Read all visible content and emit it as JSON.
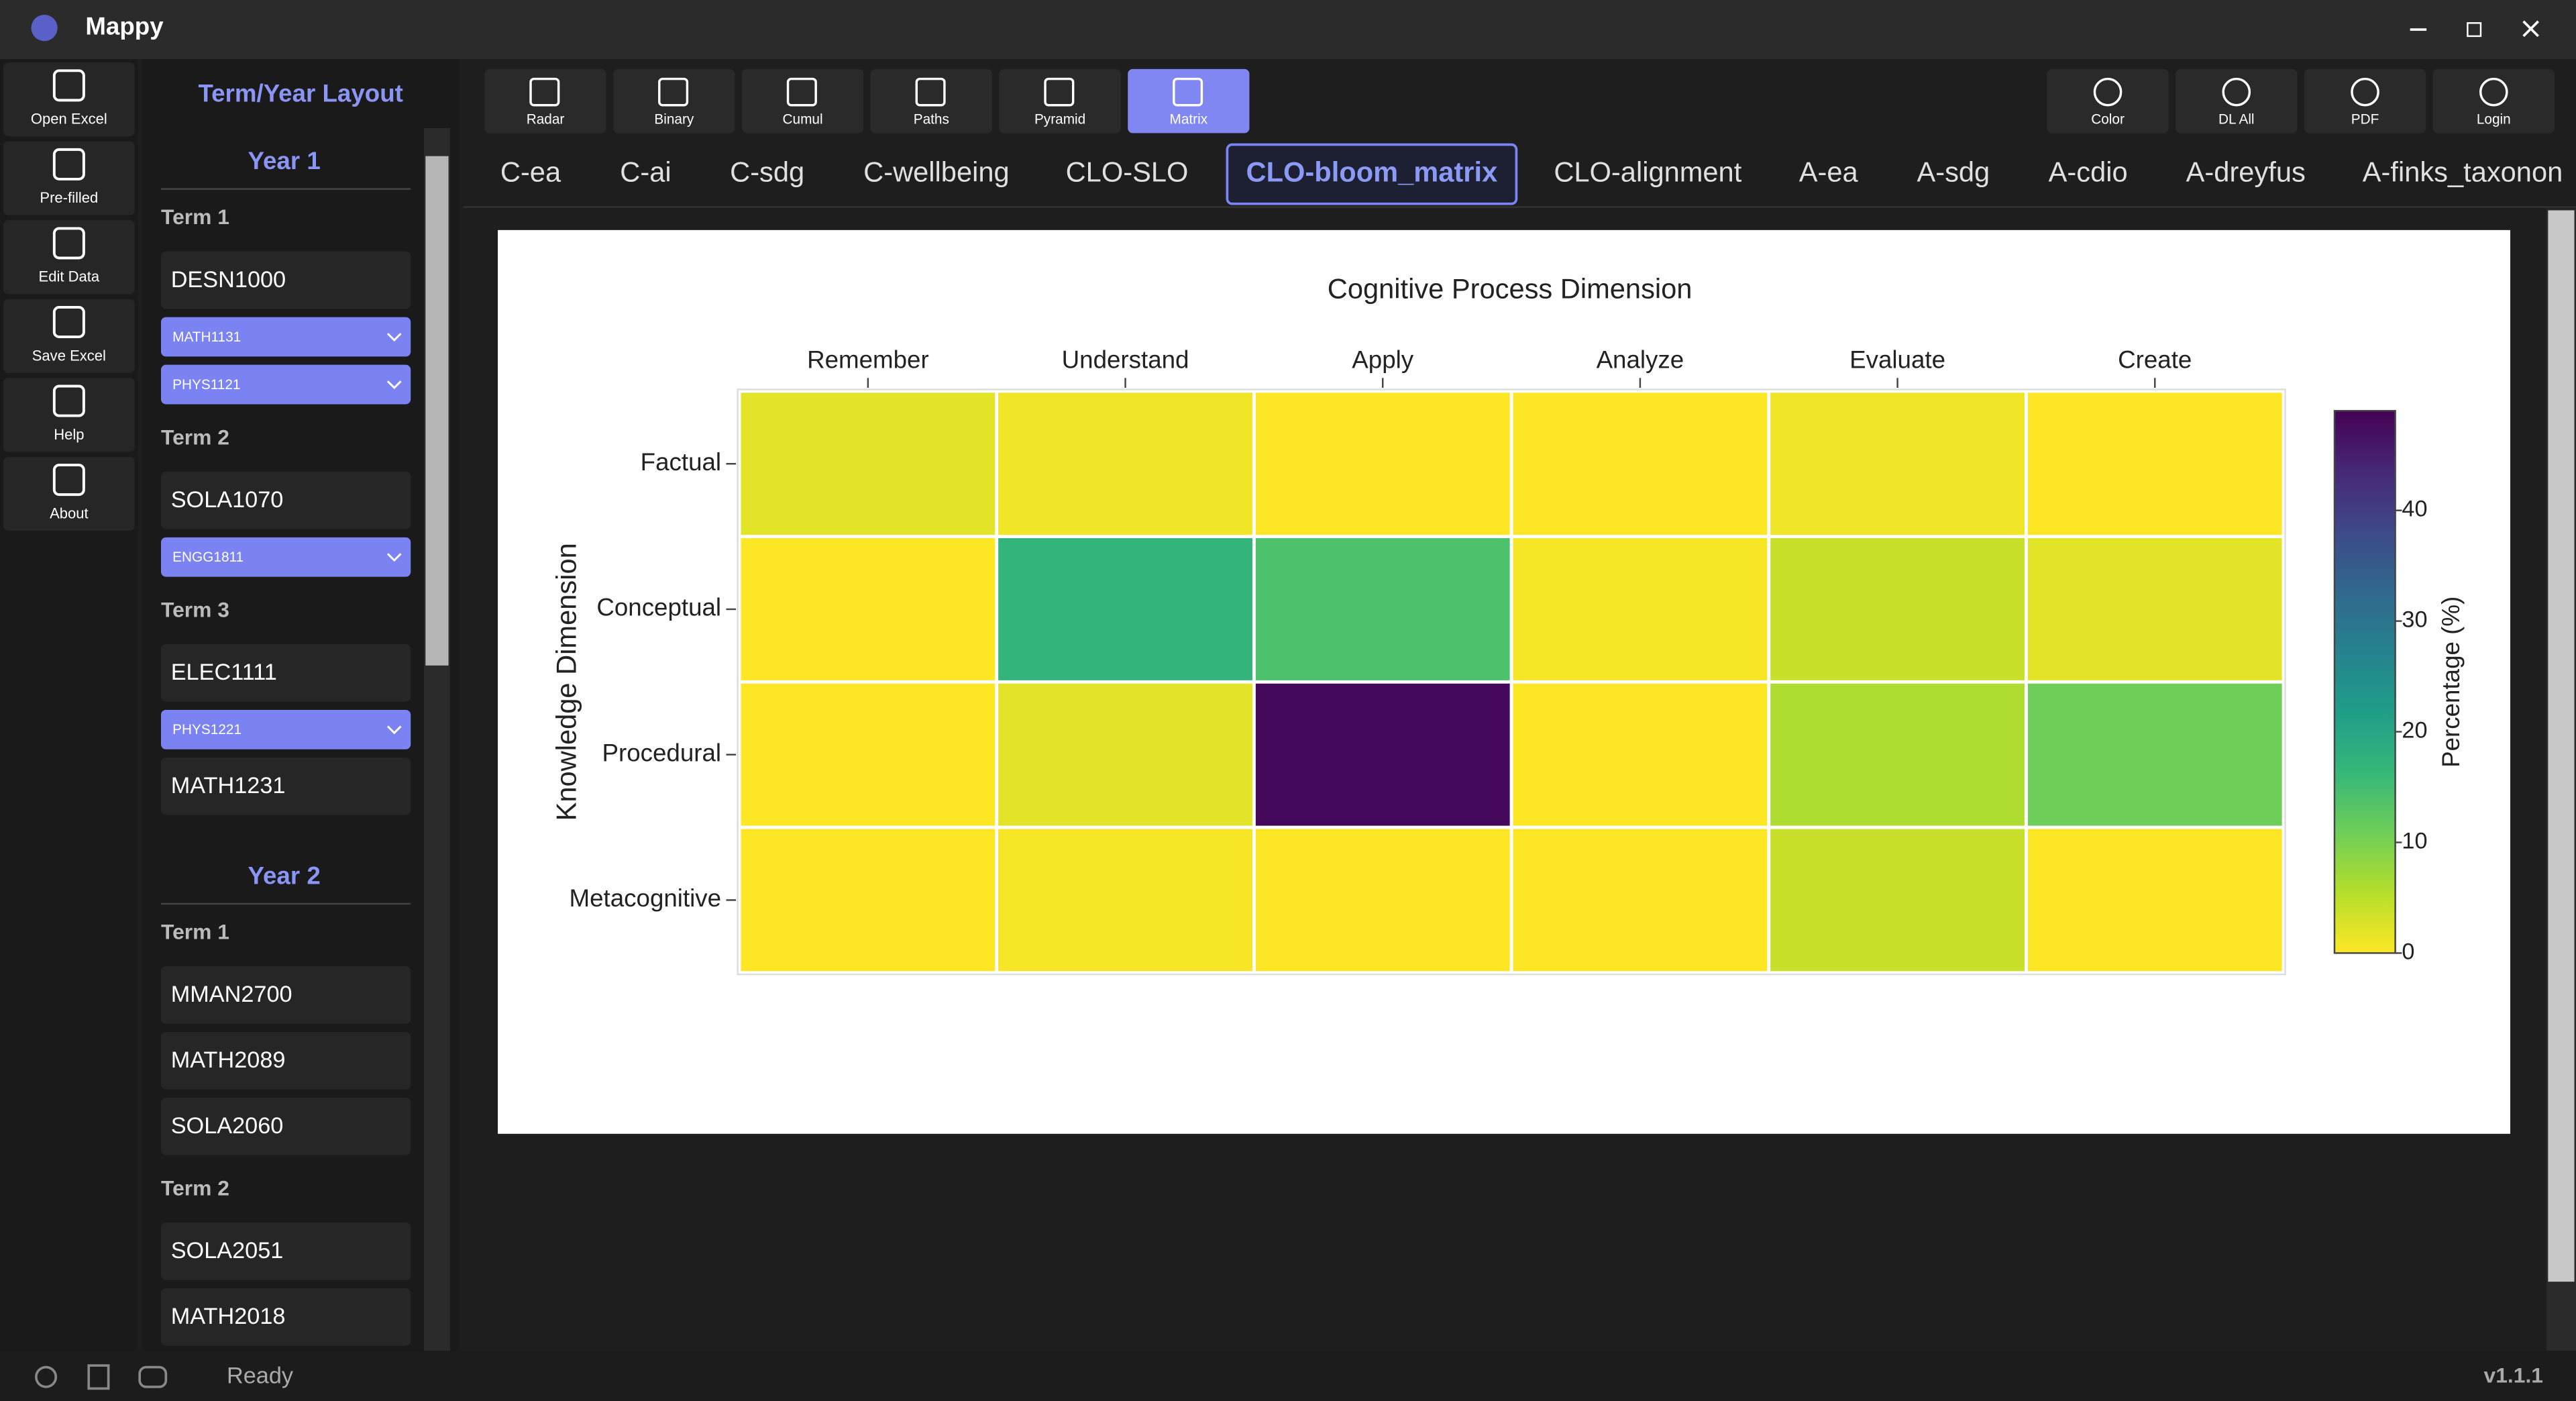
{
  "app": {
    "title": "Mappy",
    "status": "Ready",
    "version": "v1.1.1"
  },
  "rail": [
    "Open Excel",
    "Pre-filled",
    "Edit Data",
    "Save Excel",
    "Help",
    "About"
  ],
  "panel": {
    "title": "Term/Year Layout",
    "years": [
      {
        "title": "Year 1",
        "terms": [
          {
            "title": "Term 1",
            "items": [
              {
                "course": "DESN1000"
              },
              {
                "dropdown": "MATH1131"
              },
              {
                "dropdown": "PHYS1121"
              }
            ]
          },
          {
            "title": "Term 2",
            "items": [
              {
                "course": "SOLA1070"
              },
              {
                "dropdown": "ENGG1811"
              }
            ]
          },
          {
            "title": "Term 3",
            "items": [
              {
                "course": "ELEC1111"
              },
              {
                "dropdown": "PHYS1221"
              },
              {
                "course": "MATH1231"
              }
            ]
          }
        ]
      },
      {
        "title": "Year 2",
        "terms": [
          {
            "title": "Term 1",
            "items": [
              {
                "course": "MMAN2700"
              },
              {
                "course": "MATH2089"
              },
              {
                "course": "SOLA2060"
              }
            ]
          },
          {
            "title": "Term 2",
            "items": [
              {
                "course": "SOLA2051"
              },
              {
                "course": "MATH2018"
              }
            ]
          }
        ]
      }
    ]
  },
  "toolbar": {
    "left": [
      "Radar",
      "Binary",
      "Cumul",
      "Paths",
      "Pyramid",
      "Matrix"
    ],
    "active": 5,
    "right": [
      "Color",
      "DL All",
      "PDF",
      "Login"
    ]
  },
  "tabs": {
    "labels": [
      "C-ea",
      "C-ai",
      "C-sdg",
      "C-wellbeing",
      "CLO-SLO",
      "CLO-bloom_matrix",
      "CLO-alignment",
      "A-ea",
      "A-sdg",
      "A-cdio",
      "A-dreyfus",
      "A-finks_taxonon"
    ],
    "active": 5
  },
  "chart_data": {
    "type": "heatmap",
    "title": "Cognitive Process Dimension",
    "y_label": "Knowledge Dimension",
    "categories": [
      "Remember",
      "Understand",
      "Apply",
      "Analyze",
      "Evaluate",
      "Create"
    ],
    "rows": [
      "Factual",
      "Conceptual",
      "Procedural",
      "Metacognitive"
    ],
    "values": [
      [
        2,
        1,
        0,
        0,
        1,
        0
      ],
      [
        0,
        17,
        14,
        0.5,
        4,
        2
      ],
      [
        0,
        2,
        48,
        0,
        6,
        11
      ],
      [
        0,
        0.5,
        0,
        0,
        4,
        0
      ]
    ],
    "colorbar_title": "Percentage (%)",
    "zlim": [
      0,
      49
    ],
    "zticks": [
      0,
      10,
      20,
      30,
      40
    ],
    "colorscale": [
      "#fde725",
      "#b5de2b",
      "#6ece58",
      "#35b779",
      "#1f9e89",
      "#26828e",
      "#31688e",
      "#3e4989",
      "#482878",
      "#440154"
    ]
  }
}
